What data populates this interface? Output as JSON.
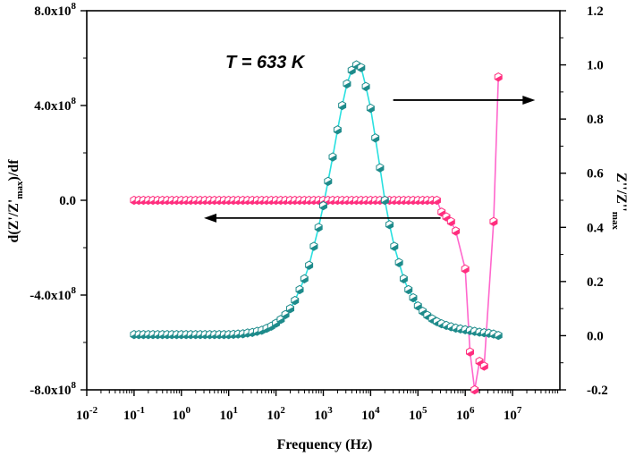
{
  "chart_data": {
    "type": "line",
    "annotation": "T = 633 K",
    "xlabel": "Frequency (Hz)",
    "ylabel_left": {
      "main": "d(Z'/Z'",
      "sub": "max",
      "tail": ")/df"
    },
    "ylabel_right": {
      "main": "Z''/Z''",
      "sub": "max"
    },
    "x_scale": "log",
    "xlim": [
      0.01,
      100000000
    ],
    "x_ticks": [
      {
        "base": "10",
        "exp": "-2"
      },
      {
        "base": "10",
        "exp": "-1"
      },
      {
        "base": "10",
        "exp": "0"
      },
      {
        "base": "10",
        "exp": "1"
      },
      {
        "base": "10",
        "exp": "2"
      },
      {
        "base": "10",
        "exp": "3"
      },
      {
        "base": "10",
        "exp": "4"
      },
      {
        "base": "10",
        "exp": "5"
      },
      {
        "base": "10",
        "exp": "6"
      },
      {
        "base": "10",
        "exp": "7"
      }
    ],
    "y_left_lim": [
      -800000000,
      800000000
    ],
    "y_left_ticks": [
      {
        "mant": "-8.0x10",
        "exp": "8"
      },
      {
        "mant": "-4.0x10",
        "exp": "8"
      },
      {
        "mant": "0.0",
        "exp": ""
      },
      {
        "mant": "4.0x10",
        "exp": "8"
      },
      {
        "mant": "8.0x10",
        "exp": "8"
      }
    ],
    "y_right_lim": [
      -0.2,
      1.2
    ],
    "y_right_ticks": [
      "-0.2",
      "0.0",
      "0.2",
      "0.4",
      "0.6",
      "0.8",
      "1.0",
      "1.2"
    ],
    "grid": false,
    "series": [
      {
        "axis": "left",
        "color": "#ff2e7e",
        "line_color": "#ff66cc",
        "x": [
          0.1,
          0.126,
          0.158,
          0.2,
          0.251,
          0.316,
          0.398,
          0.501,
          0.631,
          0.794,
          1,
          1.26,
          1.58,
          2,
          2.51,
          3.16,
          3.98,
          5.01,
          6.31,
          7.94,
          10,
          12.6,
          15.8,
          20,
          25.1,
          31.6,
          39.8,
          50.1,
          63.1,
          79.4,
          100,
          126,
          158,
          200,
          251,
          316,
          398,
          501,
          631,
          794,
          1000,
          1260,
          1580,
          2000,
          2510,
          3160,
          3980,
          5010,
          6310,
          7940,
          10000,
          12600,
          15800,
          20000,
          25100,
          31600,
          39800,
          50100,
          63100,
          79400,
          100000,
          126000,
          158000,
          200000,
          251000,
          316000,
          398000,
          501000,
          631000,
          1000000,
          1260000,
          1580000,
          2000000,
          2510000,
          3980000,
          5010000
        ],
        "y": [
          0,
          0,
          0,
          0,
          0,
          0,
          0,
          0,
          0,
          0,
          0,
          0,
          0,
          0,
          0,
          0,
          0,
          0,
          0,
          0,
          0,
          0,
          0,
          0,
          0,
          0,
          0,
          0,
          0,
          0,
          0,
          0,
          0,
          0,
          0,
          0,
          0,
          0,
          0,
          0,
          0,
          0,
          0,
          0,
          0,
          0,
          0,
          0,
          0,
          0,
          0,
          0,
          0,
          0,
          0,
          0,
          0,
          0,
          0,
          0,
          0,
          0,
          0,
          0,
          0,
          -50000000,
          -70000000,
          -90000000,
          -130000000,
          -290000000,
          -640000000,
          -800000000,
          -680000000,
          -700000000,
          -90000000,
          520000000
        ]
      },
      {
        "axis": "right",
        "color": "#1e8b8b",
        "line_color": "#29e0e0",
        "x": [
          0.1,
          0.126,
          0.158,
          0.2,
          0.251,
          0.316,
          0.398,
          0.501,
          0.631,
          0.794,
          1,
          1.26,
          1.58,
          2,
          2.51,
          3.16,
          3.98,
          5.01,
          6.31,
          7.94,
          10,
          12.6,
          15.8,
          20,
          25.1,
          31.6,
          39.8,
          50.1,
          63.1,
          79.4,
          100,
          126,
          158,
          200,
          251,
          316,
          398,
          501,
          631,
          794,
          1000,
          1260,
          1580,
          2000,
          2510,
          3160,
          3980,
          5010,
          6310,
          7940,
          10000,
          12600,
          15800,
          20000,
          25100,
          31600,
          39800,
          50100,
          63100,
          79400,
          100000,
          126000,
          158000,
          200000,
          251000,
          316000,
          398000,
          501000,
          631000,
          794000,
          1000000,
          1260000,
          1580000,
          2000000,
          2510000,
          3160000,
          3980000,
          5010000
        ],
        "y": [
          0.004,
          0.004,
          0.004,
          0.004,
          0.004,
          0.004,
          0.004,
          0.004,
          0.004,
          0.004,
          0.004,
          0.004,
          0.004,
          0.004,
          0.004,
          0.004,
          0.004,
          0.004,
          0.004,
          0.004,
          0.004,
          0.005,
          0.006,
          0.007,
          0.01,
          0.012,
          0.016,
          0.02,
          0.027,
          0.035,
          0.046,
          0.06,
          0.078,
          0.1,
          0.13,
          0.17,
          0.21,
          0.26,
          0.33,
          0.4,
          0.48,
          0.57,
          0.66,
          0.76,
          0.85,
          0.93,
          0.98,
          1.0,
          0.99,
          0.92,
          0.84,
          0.73,
          0.62,
          0.5,
          0.41,
          0.33,
          0.27,
          0.21,
          0.17,
          0.14,
          0.11,
          0.09,
          0.075,
          0.062,
          0.052,
          0.044,
          0.038,
          0.033,
          0.028,
          0.025,
          0.022,
          0.019,
          0.016,
          0.013,
          0.011,
          0.009,
          0.006,
          0.001
        ]
      }
    ],
    "arrows": [
      {
        "direction": "left",
        "x_from": 300000,
        "x_to": 3,
        "y_axis": "left",
        "y": -75000000
      },
      {
        "direction": "right",
        "x_from": 30000,
        "x_to": 30000000,
        "y_axis": "right",
        "y": 0.87
      }
    ]
  }
}
